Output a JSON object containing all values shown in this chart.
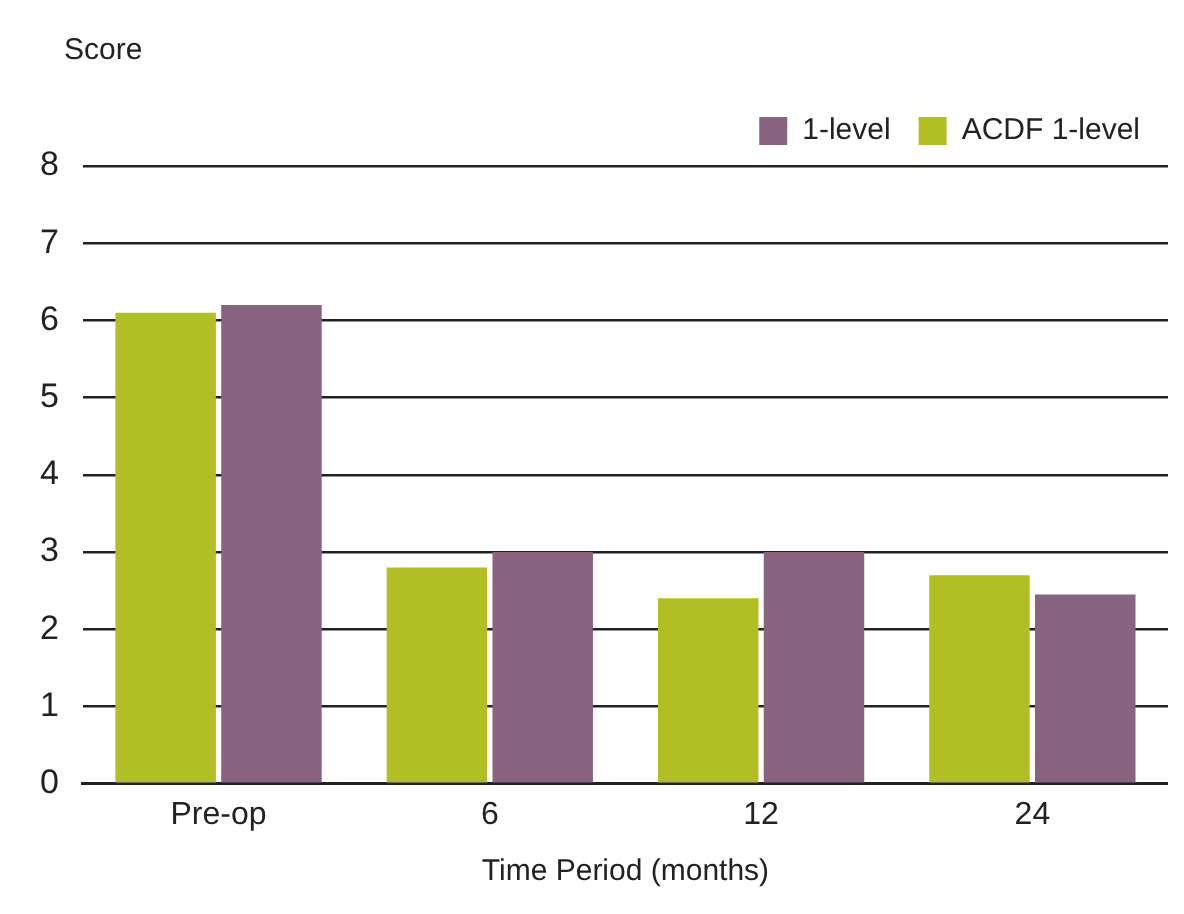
{
  "chart_data": {
    "type": "bar",
    "ylabel": "Score",
    "xlabel": "Time Period (months)",
    "categories": [
      "Pre-op",
      "6",
      "12",
      "24"
    ],
    "series": [
      {
        "name": "ACDF 1-level",
        "color": "#b2bf24",
        "values": [
          6.1,
          2.8,
          2.4,
          2.7
        ]
      },
      {
        "name": "1-level",
        "color": "#896480",
        "values": [
          6.2,
          3.0,
          3.0,
          2.45
        ]
      }
    ],
    "ylim": [
      0,
      8
    ],
    "yticks": [
      0,
      1,
      2,
      3,
      4,
      5,
      6,
      7,
      8
    ],
    "grid": "y",
    "legend": "top right"
  }
}
